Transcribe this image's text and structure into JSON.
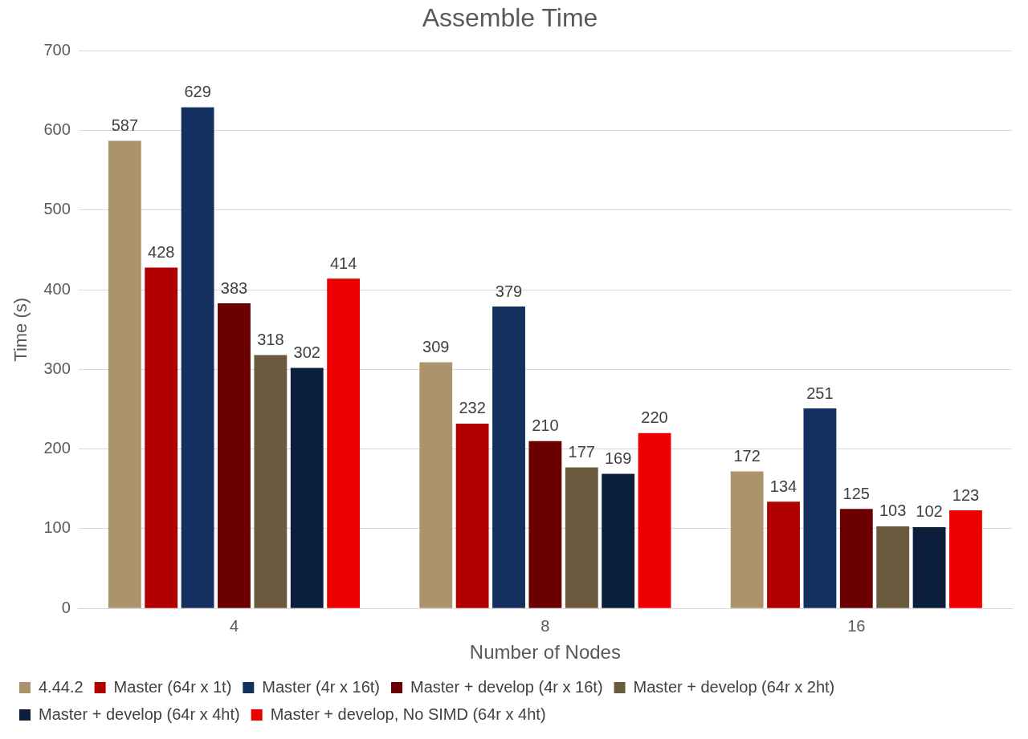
{
  "chart_data": {
    "type": "bar",
    "title": "Assemble Time",
    "xlabel": "Number of Nodes",
    "ylabel": "Time (s)",
    "categories": [
      "4",
      "8",
      "16"
    ],
    "series": [
      {
        "name": "4.44.2",
        "color": "#ab946b",
        "values": [
          587,
          309,
          172
        ]
      },
      {
        "name": "Master (64r x 1t)",
        "color": "#b00000",
        "values": [
          428,
          232,
          134
        ]
      },
      {
        "name": "Master (4r x 16t)",
        "color": "#13305f",
        "values": [
          629,
          379,
          251
        ]
      },
      {
        "name": "Master + develop (4r x 16t)",
        "color": "#6a0000",
        "values": [
          383,
          210,
          125
        ]
      },
      {
        "name": "Master + develop (64r x 2ht)",
        "color": "#6b5a3d",
        "values": [
          318,
          177,
          103
        ]
      },
      {
        "name": "Master + develop (64r x 4ht)",
        "color": "#0b1f3d",
        "values": [
          302,
          169,
          102
        ]
      },
      {
        "name": "Master + develop, No SIMD (64r x 4ht)",
        "color": "#ee0000",
        "values": [
          414,
          220,
          123
        ]
      }
    ],
    "ylim": [
      0,
      700
    ],
    "yticks": [
      0,
      100,
      200,
      300,
      400,
      500,
      600,
      700
    ],
    "grid": "y",
    "legend": "bottom",
    "data_labels": true
  }
}
